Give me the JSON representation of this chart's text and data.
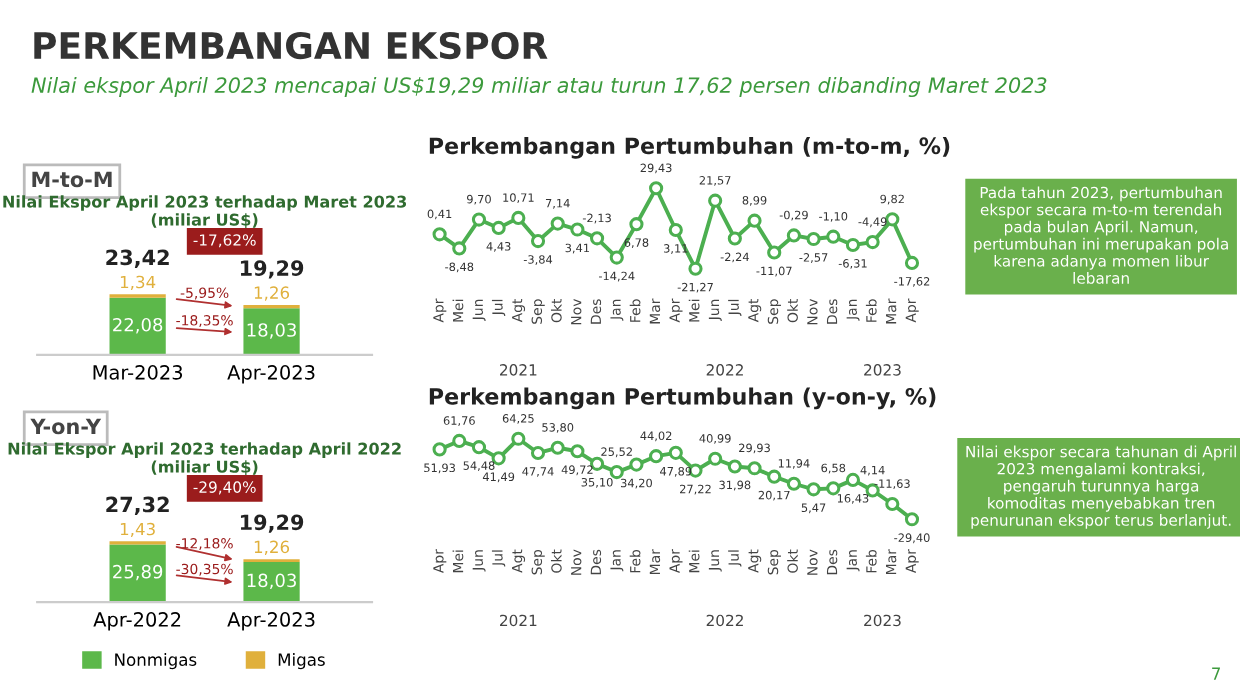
{
  "chart_data": [
    {
      "type": "other",
      "title": "PERKEMBANGAN EKSPOR",
      "subtitle": "Nilai ekspor April 2023 mencapai US$19,29 miliar atau turun 17,62 persen dibanding Maret 2023",
      "annotations": [
        "7"
      ]
    },
    {
      "type": "bar",
      "stacked": true,
      "title": "Nilai Ekspor April 2023 terhadap Maret 2023",
      "subtitle": "(miliar US$)",
      "categories": [
        "Mar-2023",
        "Apr-2023"
      ],
      "series": [
        {
          "color": "#5cb84a",
          "values": [
            22.08,
            18.03
          ],
          "value_labels": [
            "22,08",
            "18,03"
          ]
        },
        {
          "color": "#e0b03c",
          "values": [
            1.34,
            1.26
          ],
          "value_labels": [
            "1,34",
            "1,26"
          ]
        }
      ],
      "totals": [
        "23,42",
        "19,29"
      ],
      "annotations": [
        "M-to-M",
        "-17,62%",
        "-5,95%",
        "-18,35%"
      ],
      "tick_labels": "x",
      "legend": false
    },
    {
      "type": "line",
      "title": "Perkembangan Pertumbuhan (m-to-m, %)",
      "categories": [
        "Apr",
        "Mei",
        "Jun",
        "Jul",
        "Agt",
        "Sep",
        "Okt",
        "Nov",
        "Des",
        "Jan",
        "Feb",
        "Mar",
        "Apr",
        "Mei",
        "Jun",
        "Jul",
        "Agt",
        "Sep",
        "Okt",
        "Nov",
        "Des",
        "Jan",
        "Feb",
        "Mar",
        "Apr"
      ],
      "series": [
        {
          "color": "#4caf50",
          "values": [
            0.41,
            -8.48,
            9.7,
            4.43,
            10.71,
            -3.84,
            7.14,
            3.41,
            -2.13,
            -14.24,
            6.78,
            29.43,
            3.11,
            -21.27,
            21.57,
            -2.24,
            8.99,
            -11.07,
            -0.29,
            -2.57,
            -1.1,
            -6.31,
            -4.49,
            9.82,
            -17.62
          ],
          "value_labels": [
            "0,41",
            "-8,48",
            "9,70",
            "4,43",
            "10,71",
            "-3,84",
            "7,14",
            "3,41",
            "-2,13",
            "-14,24",
            "6,78",
            "29,43",
            "3,11",
            "-21,27",
            "21,57",
            "-2,24",
            "8,99",
            "-11,07",
            "-0,29",
            "-2,57",
            "-1,10",
            "-6,31",
            "-4,49",
            "9,82",
            "-17,62"
          ]
        }
      ],
      "marker": "circle",
      "tick_labels": "x",
      "grid": false,
      "annotations": [
        "2021",
        "2022",
        "2023",
        "Pada tahun 2023, pertumbuhan ekspor secara m-to-m terendah pada bulan April. Namun, pertumbuhan ini merupakan pola karena adanya momen libur lebaran"
      ]
    },
    {
      "type": "bar",
      "stacked": true,
      "title": "Nilai Ekspor April 2023 terhadap April 2022",
      "subtitle": "(miliar US$)",
      "categories": [
        "Apr-2022",
        "Apr-2023"
      ],
      "series": [
        {
          "name": "Nonmigas",
          "color": "#5cb84a",
          "values": [
            25.89,
            18.03
          ],
          "value_labels": [
            "25,89",
            "18,03"
          ]
        },
        {
          "name": "Migas",
          "color": "#e0b03c",
          "values": [
            1.43,
            1.26
          ],
          "value_labels": [
            "1,43",
            "1,26"
          ]
        }
      ],
      "totals": [
        "27,32",
        "19,29"
      ],
      "annotations": [
        "Y-on-Y",
        "-29,40%",
        "-12,18%",
        "-30,35%"
      ],
      "tick_labels": "x",
      "legend": "bottom"
    },
    {
      "type": "line",
      "title": "Perkembangan Pertumbuhan (y-on-y, %)",
      "categories": [
        "Apr",
        "Mei",
        "Jun",
        "Jul",
        "Agt",
        "Sep",
        "Okt",
        "Nov",
        "Des",
        "Jan",
        "Feb",
        "Mar",
        "Apr",
        "Mei",
        "Jun",
        "Jul",
        "Agt",
        "Sep",
        "Okt",
        "Nov",
        "Des",
        "Jan",
        "Feb",
        "Mar",
        "Apr"
      ],
      "series": [
        {
          "color": "#4caf50",
          "values": [
            51.93,
            61.76,
            54.48,
            41.49,
            64.25,
            47.74,
            53.8,
            49.72,
            35.1,
            25.52,
            34.2,
            44.02,
            47.89,
            27.22,
            40.99,
            31.98,
            29.93,
            20.17,
            11.94,
            5.47,
            6.58,
            16.43,
            4.14,
            -11.63,
            -29.4
          ],
          "value_labels": [
            "51,93",
            "61,76",
            "54,48",
            "41,49",
            "64,25",
            "47,74",
            "53,80",
            "49,72",
            "35,10",
            "25,52",
            "34,20",
            "44,02",
            "47,89",
            "27,22",
            "40,99",
            "31,98",
            "29,93",
            "20,17",
            "11,94",
            "5,47",
            "6,58",
            "16,43",
            "4,14",
            "-11,63",
            "-29,40"
          ]
        }
      ],
      "marker": "circle",
      "tick_labels": "x",
      "grid": false,
      "annotations": [
        "2021",
        "2022",
        "2023",
        "Nilai ekspor secara tahunan di April 2023 mengalami kontraksi, pengaruh turunnya harga komoditas menyebabkan tren penurunan ekspor terus berlanjut."
      ]
    }
  ]
}
